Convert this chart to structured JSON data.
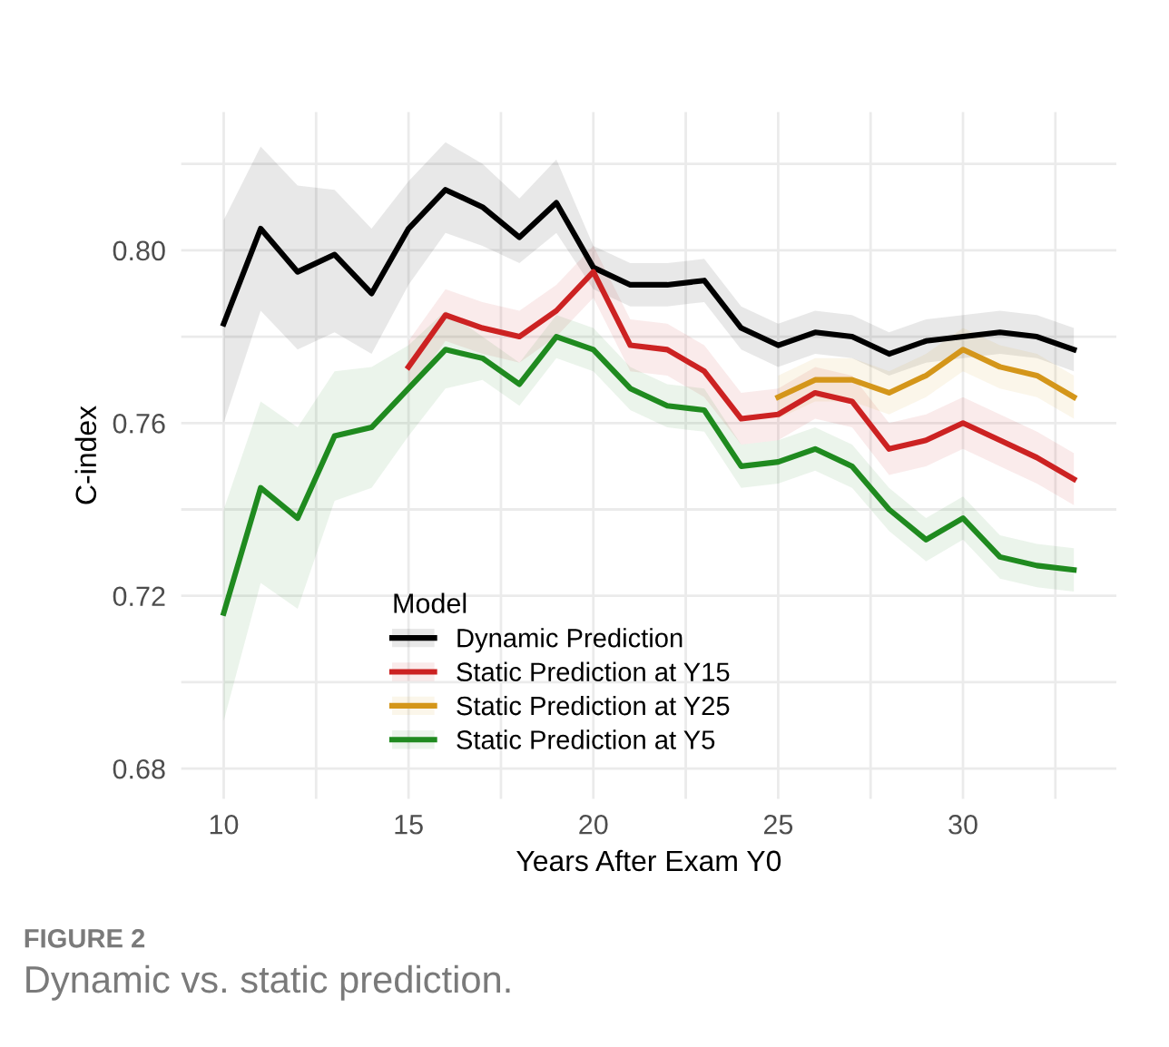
{
  "chart_data": {
    "type": "line",
    "xlabel": "Years After Exam Y0",
    "ylabel": "C-index",
    "legend_title": "Model",
    "legend": "bottom left",
    "grid": true,
    "xlim": [
      8.85,
      34.15
    ],
    "xticks": [
      10,
      {
        "value": 12.5,
        "label": null
      },
      15,
      {
        "value": 17.5,
        "label": null
      },
      20,
      {
        "value": 22.5,
        "label": null
      },
      25,
      {
        "value": 27.5,
        "label": null
      },
      30,
      {
        "value": 32.5,
        "label": null
      }
    ],
    "ylim": [
      0.673,
      0.832
    ],
    "yticks": [
      {
        "value": 0.68,
        "label": "0.68"
      },
      {
        "value": 0.7,
        "label": null
      },
      {
        "value": 0.72,
        "label": "0.72"
      },
      {
        "value": 0.74,
        "label": null
      },
      {
        "value": 0.76,
        "label": "0.76"
      },
      {
        "value": 0.78,
        "label": null
      },
      {
        "value": 0.8,
        "label": "0.80"
      },
      {
        "value": 0.82,
        "label": null
      }
    ],
    "annotations": [
      "FIGURE 2",
      "Dynamic vs. static prediction."
    ],
    "series": [
      {
        "name": "Dynamic Prediction",
        "color": "#000000",
        "x": [
          10,
          11,
          12,
          13,
          14,
          15,
          16,
          17,
          18,
          19,
          20,
          21,
          22,
          23,
          24,
          25,
          26,
          27,
          28,
          29,
          30,
          31,
          32,
          33
        ],
        "values": [
          0.783,
          0.805,
          0.795,
          0.799,
          0.79,
          0.805,
          0.814,
          0.81,
          0.803,
          0.811,
          0.796,
          0.792,
          0.792,
          0.793,
          0.782,
          0.778,
          0.781,
          0.78,
          0.776,
          0.779,
          0.78,
          0.781,
          0.78,
          0.777
        ],
        "upper": [
          0.807,
          0.824,
          0.815,
          0.814,
          0.805,
          0.816,
          0.825,
          0.82,
          0.812,
          0.821,
          0.801,
          0.797,
          0.797,
          0.798,
          0.787,
          0.783,
          0.786,
          0.785,
          0.781,
          0.784,
          0.785,
          0.786,
          0.785,
          0.782
        ],
        "lower": [
          0.76,
          0.786,
          0.777,
          0.781,
          0.776,
          0.792,
          0.804,
          0.801,
          0.797,
          0.804,
          0.791,
          0.787,
          0.787,
          0.788,
          0.777,
          0.773,
          0.776,
          0.775,
          0.771,
          0.774,
          0.775,
          0.776,
          0.775,
          0.772
        ]
      },
      {
        "name": "Static Prediction at Y15",
        "color": "#cc2222",
        "x": [
          15,
          16,
          17,
          18,
          19,
          20,
          21,
          22,
          23,
          24,
          25,
          26,
          27,
          28,
          29,
          30,
          31,
          32,
          33
        ],
        "values": [
          0.773,
          0.785,
          0.782,
          0.78,
          0.786,
          0.795,
          0.778,
          0.777,
          0.772,
          0.761,
          0.762,
          0.767,
          0.765,
          0.754,
          0.756,
          0.76,
          0.756,
          0.752,
          0.747
        ],
        "upper": [
          0.779,
          0.791,
          0.788,
          0.786,
          0.792,
          0.801,
          0.784,
          0.783,
          0.778,
          0.767,
          0.768,
          0.773,
          0.771,
          0.76,
          0.762,
          0.766,
          0.762,
          0.758,
          0.753
        ],
        "lower": [
          0.767,
          0.779,
          0.776,
          0.774,
          0.78,
          0.789,
          0.772,
          0.771,
          0.766,
          0.755,
          0.756,
          0.761,
          0.759,
          0.748,
          0.75,
          0.754,
          0.75,
          0.746,
          0.741
        ]
      },
      {
        "name": "Static Prediction at Y25",
        "color": "#d4961a",
        "x": [
          25,
          26,
          27,
          28,
          29,
          30,
          31,
          32,
          33
        ],
        "values": [
          0.766,
          0.77,
          0.77,
          0.767,
          0.771,
          0.777,
          0.773,
          0.771,
          0.766
        ],
        "upper": [
          0.771,
          0.775,
          0.775,
          0.772,
          0.776,
          0.782,
          0.778,
          0.776,
          0.771
        ],
        "lower": [
          0.761,
          0.765,
          0.765,
          0.762,
          0.766,
          0.772,
          0.768,
          0.766,
          0.761
        ]
      },
      {
        "name": "Static Prediction at Y5",
        "color": "#1f8a1f",
        "x": [
          10,
          11,
          12,
          13,
          14,
          15,
          16,
          17,
          18,
          19,
          20,
          21,
          22,
          23,
          24,
          25,
          26,
          27,
          28,
          29,
          30,
          31,
          32,
          33
        ],
        "values": [
          0.716,
          0.745,
          0.738,
          0.757,
          0.759,
          0.768,
          0.777,
          0.775,
          0.769,
          0.78,
          0.777,
          0.768,
          0.764,
          0.763,
          0.75,
          0.751,
          0.754,
          0.75,
          0.74,
          0.733,
          0.738,
          0.729,
          0.727,
          0.726
        ],
        "upper": [
          0.74,
          0.765,
          0.759,
          0.772,
          0.773,
          0.778,
          0.786,
          0.78,
          0.774,
          0.785,
          0.782,
          0.773,
          0.769,
          0.768,
          0.755,
          0.756,
          0.759,
          0.755,
          0.745,
          0.738,
          0.743,
          0.734,
          0.732,
          0.731
        ],
        "lower": [
          0.691,
          0.723,
          0.717,
          0.742,
          0.745,
          0.757,
          0.768,
          0.77,
          0.764,
          0.775,
          0.772,
          0.763,
          0.759,
          0.758,
          0.745,
          0.746,
          0.749,
          0.745,
          0.735,
          0.728,
          0.733,
          0.724,
          0.722,
          0.721
        ]
      }
    ]
  }
}
